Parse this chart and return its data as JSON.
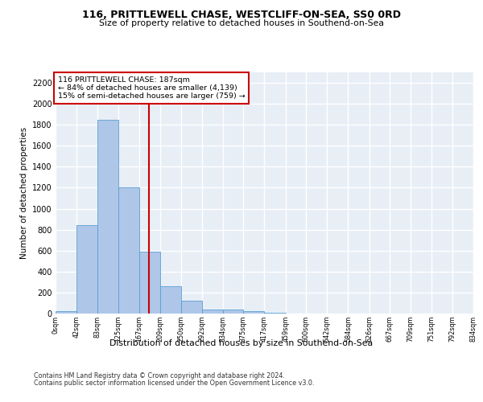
{
  "title_line1": "116, PRITTLEWELL CHASE, WESTCLIFF-ON-SEA, SS0 0RD",
  "title_line2": "Size of property relative to detached houses in Southend-on-Sea",
  "xlabel": "Distribution of detached houses by size in Southend-on-Sea",
  "ylabel": "Number of detached properties",
  "footer_line1": "Contains HM Land Registry data © Crown copyright and database right 2024.",
  "footer_line2": "Contains public sector information licensed under the Open Government Licence v3.0.",
  "annotation_line1": "116 PRITTLEWELL CHASE: 187sqm",
  "annotation_line2": "← 84% of detached houses are smaller (4,139)",
  "annotation_line3": "15% of semi-detached houses are larger (759) →",
  "bar_edges": [
    0,
    42,
    83,
    125,
    167,
    209,
    250,
    292,
    334,
    375,
    417,
    459,
    500,
    542,
    584,
    626,
    667,
    709,
    751,
    792,
    834
  ],
  "bar_heights": [
    20,
    840,
    1850,
    1200,
    590,
    260,
    120,
    35,
    35,
    20,
    5,
    0,
    0,
    0,
    0,
    0,
    0,
    0,
    0,
    0
  ],
  "bar_color": "#aec6e8",
  "bar_edge_color": "#5a9fd4",
  "red_line_x": 187,
  "ylim": [
    0,
    2300
  ],
  "yticks": [
    0,
    200,
    400,
    600,
    800,
    1000,
    1200,
    1400,
    1600,
    1800,
    2000,
    2200
  ],
  "background_color": "#e8eef6",
  "grid_color": "#ffffff",
  "annotation_box_color": "#ffffff",
  "annotation_box_edge": "#cc0000",
  "fig_bg": "#ffffff"
}
